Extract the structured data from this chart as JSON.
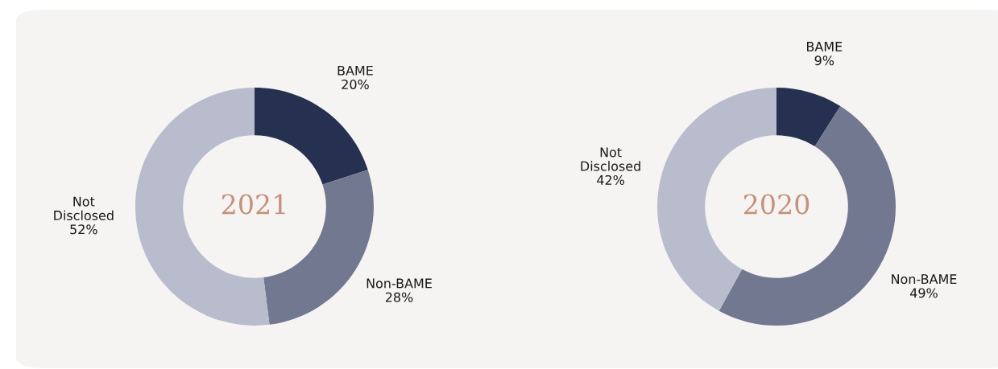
{
  "chart_data": [
    {
      "type": "donut",
      "title": "2021",
      "categories": [
        "BAME",
        "Non-BAME",
        "Not Disclosed"
      ],
      "values": [
        20,
        28,
        52
      ],
      "value_labels": [
        "20%",
        "28%",
        "52%"
      ],
      "colors": [
        "#263152",
        "#737891",
        "#b8bccc"
      ],
      "legend": false
    },
    {
      "type": "donut",
      "title": "2020",
      "categories": [
        "BAME",
        "Non-BAME",
        "Not Disclosed"
      ],
      "values": [
        9,
        49,
        42
      ],
      "value_labels": [
        "9%",
        "49%",
        "42%"
      ],
      "colors": [
        "#263152",
        "#737891",
        "#b8bccc"
      ],
      "legend": false
    }
  ]
}
